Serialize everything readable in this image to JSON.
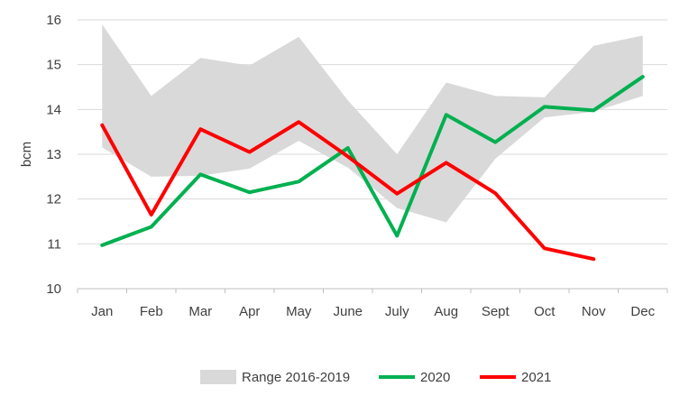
{
  "chart_data": {
    "type": "line",
    "title": "",
    "xlabel": "",
    "ylabel": "bcm",
    "ylim": [
      10,
      16
    ],
    "yticks": [
      10,
      11,
      12,
      13,
      14,
      15,
      16
    ],
    "grid": true,
    "legend_position": "bottom",
    "categories": [
      "Jan",
      "Feb",
      "Mar",
      "Apr",
      "May",
      "June",
      "July",
      "Aug",
      "Sept",
      "Oct",
      "Nov",
      "Dec"
    ],
    "range_band": {
      "name": "Range 2016-2019",
      "color": "#d9d9d9",
      "upper": [
        15.9,
        14.3,
        15.15,
        14.98,
        15.62,
        14.2,
        13.0,
        14.6,
        14.3,
        14.27,
        15.42,
        15.65
      ],
      "lower": [
        13.15,
        12.5,
        12.52,
        12.68,
        13.3,
        12.7,
        11.8,
        11.48,
        12.9,
        13.82,
        13.95,
        14.3
      ]
    },
    "series": [
      {
        "name": "2020",
        "color": "#00b050",
        "values": [
          10.97,
          11.38,
          12.55,
          12.15,
          12.39,
          13.14,
          11.18,
          13.88,
          13.27,
          14.06,
          13.98,
          14.73
        ]
      },
      {
        "name": "2021",
        "color": "#ff0000",
        "values": [
          13.65,
          11.65,
          13.56,
          13.05,
          13.72,
          12.95,
          12.12,
          12.81,
          12.13,
          10.9,
          10.66,
          null
        ]
      }
    ]
  }
}
